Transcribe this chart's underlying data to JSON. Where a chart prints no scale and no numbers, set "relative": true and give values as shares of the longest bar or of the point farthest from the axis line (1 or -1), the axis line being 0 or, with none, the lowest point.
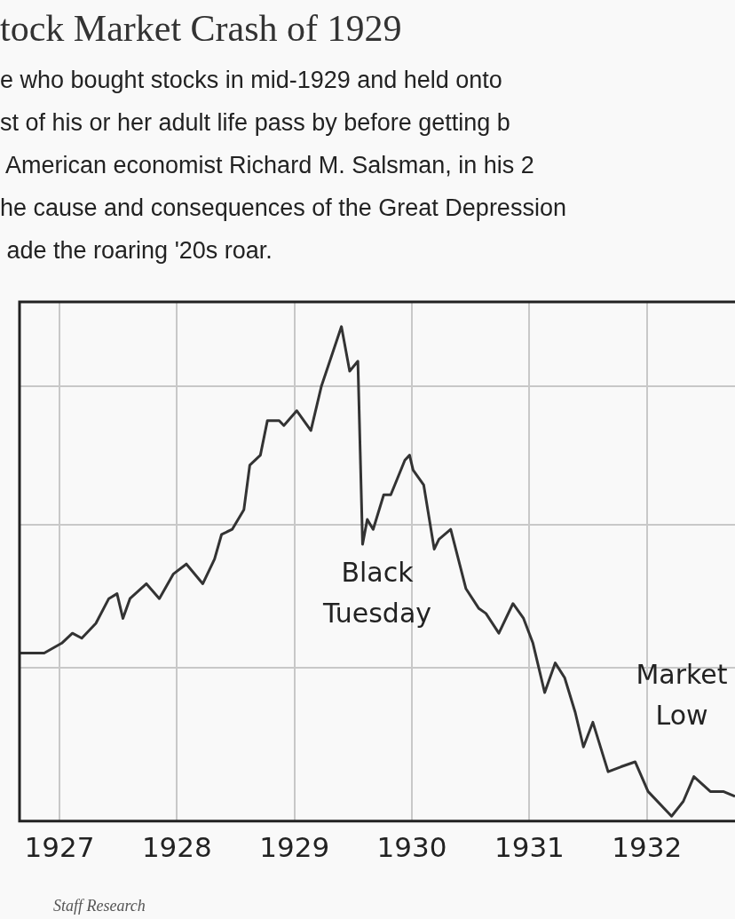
{
  "chart_data": {
    "type": "line",
    "title": "tock Market Crash of 1929",
    "subtitle": "e who bought stocks in mid-1929 and held onto\nst of his or her adult life pass by before getting b\n American economist Richard M. Salsman, in his 2\nhe cause and consequences of the Great Depression\n ade the roaring '20s roar.",
    "relative": true,
    "x": [
      1926.66,
      1926.87,
      1927.02,
      1927.11,
      1927.19,
      1927.31,
      1927.42,
      1927.49,
      1927.54,
      1927.6,
      1927.74,
      1927.85,
      1927.97,
      1928.08,
      1928.22,
      1928.32,
      1928.38,
      1928.47,
      1928.57,
      1928.62,
      1928.71,
      1928.77,
      1928.87,
      1928.91,
      1929.02,
      1929.14,
      1929.23,
      1929.4,
      1929.47,
      1929.54,
      1929.58,
      1929.62,
      1929.67,
      1929.76,
      1929.82,
      1929.94,
      1929.98,
      1930.01,
      1930.1,
      1930.19,
      1930.23,
      1930.33,
      1930.46,
      1930.57,
      1930.63,
      1930.74,
      1930.86,
      1930.95,
      1931.03,
      1931.13,
      1931.22,
      1931.3,
      1931.39,
      1931.46,
      1931.54,
      1931.67,
      1931.78,
      1931.9,
      1932.01,
      1932.21,
      1932.31,
      1932.4,
      1932.54,
      1932.65,
      1932.75
    ],
    "series": [
      {
        "color": "#333333",
        "values": [
          0.34,
          0.34,
          0.36,
          0.38,
          0.37,
          0.4,
          0.45,
          0.46,
          0.41,
          0.45,
          0.48,
          0.45,
          0.5,
          0.52,
          0.48,
          0.53,
          0.58,
          0.59,
          0.63,
          0.72,
          0.74,
          0.81,
          0.81,
          0.8,
          0.83,
          0.79,
          0.88,
          1,
          0.91,
          0.93,
          0.56,
          0.61,
          0.59,
          0.66,
          0.66,
          0.73,
          0.74,
          0.71,
          0.68,
          0.55,
          0.57,
          0.59,
          0.47,
          0.43,
          0.42,
          0.38,
          0.44,
          0.41,
          0.36,
          0.26,
          0.32,
          0.29,
          0.22,
          0.15,
          0.2,
          0.1,
          0.11,
          0.12,
          0.06,
          0.01,
          0.04,
          0.09,
          0.06,
          0.06,
          0.05
        ]
      }
    ],
    "xlim": [
      1926.66,
      1932.75
    ],
    "xticks": [
      1927,
      1928,
      1929,
      1930,
      1931,
      1932
    ],
    "grid": true,
    "marker": "none",
    "line_style": "solid",
    "annotations": [
      "Black Tuesday",
      "Market Low",
      "Staff Research"
    ]
  }
}
